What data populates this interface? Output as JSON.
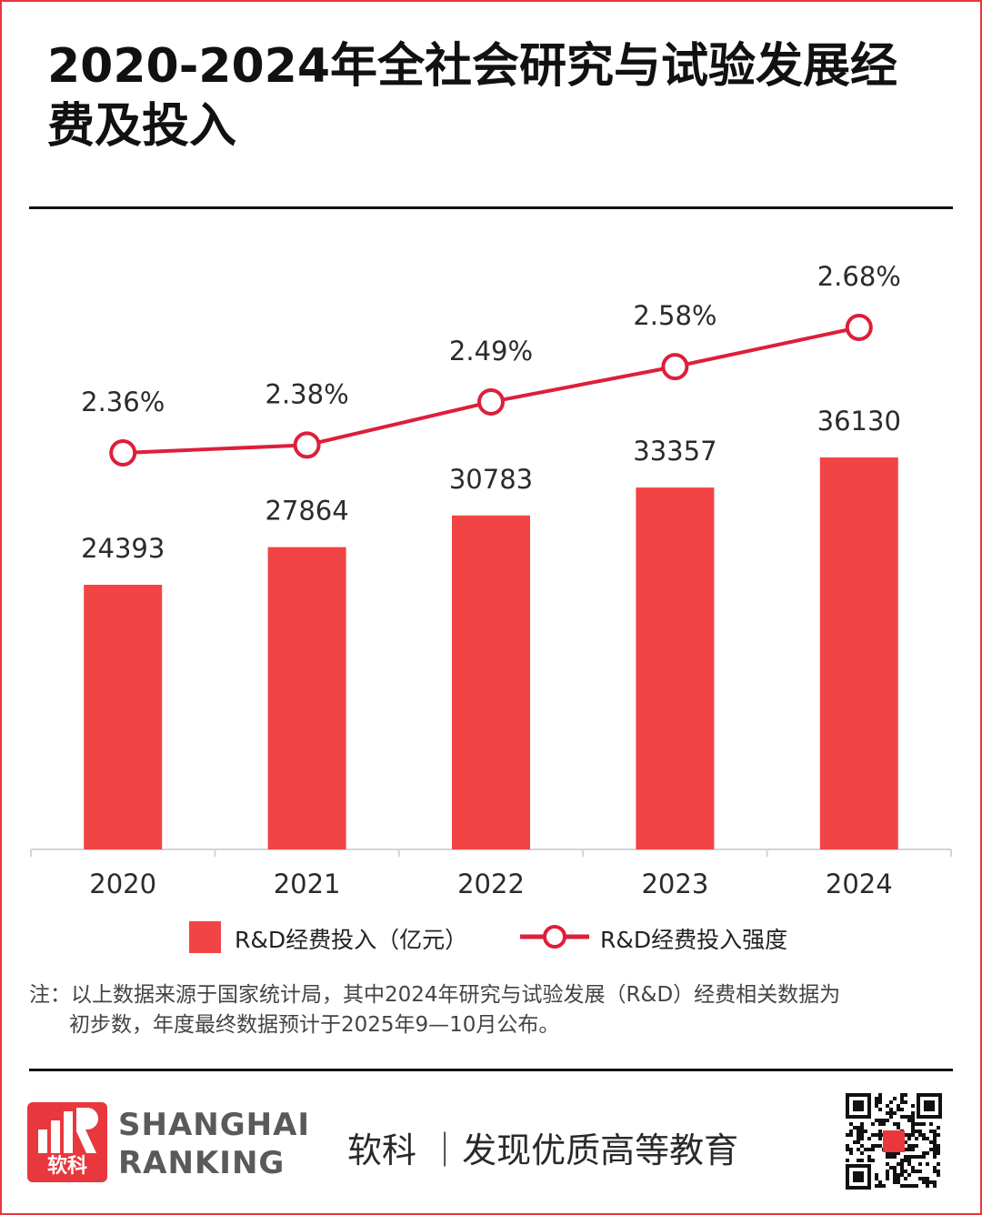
{
  "title": "2020-2024年全社会研究与试验发展经费及投入",
  "chart_data": {
    "type": "bar+line",
    "categories": [
      "2020",
      "2021",
      "2022",
      "2023",
      "2024"
    ],
    "series": [
      {
        "name": "R&D经费投入（亿元）",
        "type": "bar",
        "values": [
          24393,
          27864,
          30783,
          33357,
          36130
        ],
        "labels": [
          "24393",
          "27864",
          "30783",
          "33357",
          "36130"
        ]
      },
      {
        "name": "R&D经费投入强度",
        "type": "line",
        "values": [
          2.36,
          2.38,
          2.49,
          2.58,
          2.68
        ],
        "labels": [
          "2.36%",
          "2.38%",
          "2.49%",
          "2.58%",
          "2.68%"
        ]
      }
    ],
    "bar_ylim": [
      0,
      40000
    ],
    "line_ylim": [
      0,
      3.0
    ],
    "grid": false,
    "legend_position": "bottom",
    "colors": {
      "bar": "#f24444",
      "line": "#dd1f3a",
      "marker_fill": "#ffffff"
    }
  },
  "legend": {
    "bar_label": "R&D经费投入（亿元）",
    "line_label": "R&D经费投入强度"
  },
  "note": {
    "line1": "注：以上数据来源于国家统计局，其中2024年研究与试验发展（R&D）经费相关数据为",
    "line2": "初步数，年度最终数据预计于2025年9—10月公布。"
  },
  "footer": {
    "logo_cn": "软科",
    "brand_en_1": "SHANGHAI",
    "brand_en_2": "RANKING",
    "slogan": "软科 ｜发现优质高等教育",
    "qr_icon": "qr-code-icon"
  },
  "colors": {
    "accent": "#e8373d",
    "bar": "#f24444",
    "line": "#dd1f3a"
  }
}
